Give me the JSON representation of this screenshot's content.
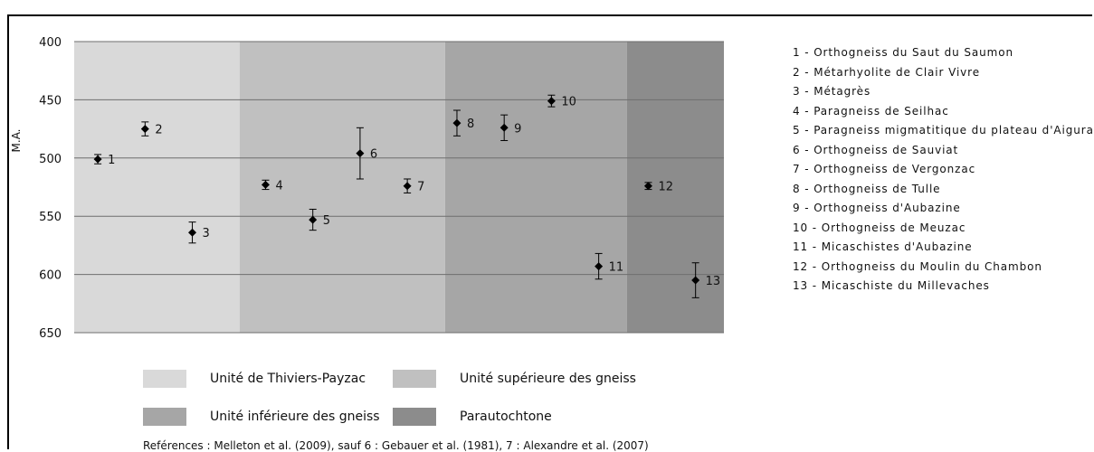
{
  "chart_data": {
    "type": "scatter",
    "ylabel": "M.A.",
    "ylim": [
      400,
      650
    ],
    "y_inverted": true,
    "y_ticks": [
      "400",
      "450",
      "500",
      "550",
      "600",
      "650"
    ],
    "grid": true,
    "bands": [
      {
        "name": "Unité de Thiviers-Payzac",
        "color": "#d9d9d9",
        "from": 0.5,
        "to": 4.0
      },
      {
        "name": "Unité supérieure des gneiss",
        "color": "#c0c0c0",
        "from": 4.0,
        "to": 8.35
      },
      {
        "name": "Unité inférieure des gneiss",
        "color": "#a6a6a6",
        "from": 8.35,
        "to": 12.2
      },
      {
        "name": "Parautochtone",
        "color": "#8c8c8c",
        "from": 12.2,
        "to": 14.25
      }
    ],
    "points": [
      {
        "x": 1,
        "y": 501,
        "err": 4,
        "label": "1"
      },
      {
        "x": 2,
        "y": 475,
        "err": 6,
        "label": "2"
      },
      {
        "x": 3,
        "y": 564,
        "err": 9,
        "label": "3"
      },
      {
        "x": 4.55,
        "y": 523,
        "err": 4,
        "label": "4"
      },
      {
        "x": 5.55,
        "y": 553,
        "err": 9,
        "label": "5"
      },
      {
        "x": 6.55,
        "y": 496,
        "err": 22,
        "label": "6"
      },
      {
        "x": 7.55,
        "y": 524,
        "err": 6,
        "label": "7"
      },
      {
        "x": 8.6,
        "y": 470,
        "err": 11,
        "label": "8"
      },
      {
        "x": 9.6,
        "y": 474,
        "err": 11,
        "label": "9"
      },
      {
        "x": 10.6,
        "y": 451,
        "err": 5,
        "label": "10"
      },
      {
        "x": 11.6,
        "y": 593,
        "err": 11,
        "label": "11"
      },
      {
        "x": 12.65,
        "y": 524,
        "err": 3,
        "label": "12"
      },
      {
        "x": 13.65,
        "y": 605,
        "err": 15,
        "label": "13"
      }
    ],
    "legend_items": [
      "1 - Orthogneiss du Saut du Saumon",
      "2 - Métarhyolite de Clair Vivre",
      "3 - Métagrès",
      "4 - Paragneiss de Seilhac",
      "5 - Paragneiss migmatitique du plateau d'Aigurande",
      "6 - Orthogneiss de Sauviat",
      "7 - Orthogneiss de Vergonzac",
      "8 - Orthogneiss de Tulle",
      "9 - Orthogneiss d'Aubazine",
      "10 - Orthogneiss de Meuzac",
      "11 - Micaschistes d'Aubazine",
      "12 - Orthogneiss du Moulin du Chambon",
      "13 - Micaschiste du Millevaches"
    ],
    "references": "Reférences : Melleton et al. (2009), sauf 6 : Gebauer et al. (1981), 7 : Alexandre et al. (2007)"
  }
}
